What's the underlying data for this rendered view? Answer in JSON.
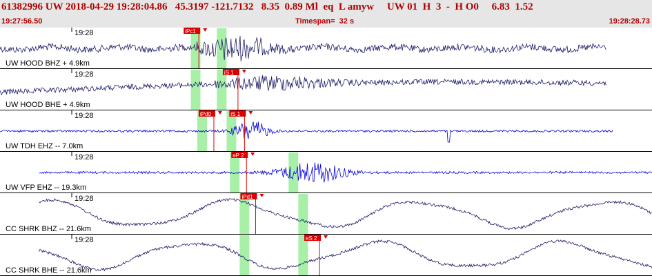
{
  "header": {
    "event_line": "61382996 UW 2018-04-29 19:28:04.86   45.3197 -121.7132   8.35  0.89 Ml  eq  L amyw     UW 01  H  3  -  H O0     6.83  1.52",
    "start_time": "19:27:56.50",
    "timespan": "Timespan=  32 s",
    "end_time": "19:28:28.73"
  },
  "colors": {
    "header_bg": "#e6e6e6",
    "header_text": "#b00000",
    "trace_dark": "#1a1a66",
    "trace_blue": "#0000dd",
    "window_green": "#a8f0a8",
    "pick_red": "#dd0000"
  },
  "panels": [
    {
      "time_label": "19:28",
      "station_label": "UW HOOD BHZ + 4.9km",
      "trace_type": "noise",
      "trace_color": "dark",
      "trace_range": [
        0.0,
        0.93
      ],
      "windows": [
        0.3,
        0.34
      ],
      "picks": [
        {
          "label": "iPc1",
          "pos": 0.305,
          "bar_top": true
        }
      ]
    },
    {
      "time_label": "19:28",
      "station_label": "UW HOOD BHE + 4.9km",
      "trace_type": "drift",
      "trace_color": "dark",
      "trace_range": [
        0.0,
        0.93
      ],
      "windows": [
        0.3,
        0.34
      ],
      "picks": [
        {
          "label": "iS 1",
          "pos": 0.365,
          "bar_top": false
        }
      ]
    },
    {
      "time_label": "19:28",
      "station_label": "UW TDH EHZ -- 7.0km",
      "trace_type": "burst",
      "trace_color": "blue",
      "trace_range": [
        0.0,
        0.94
      ],
      "windows": [
        0.31,
        0.355
      ],
      "picks": [
        {
          "label": "iPd0",
          "pos": 0.328,
          "bar_top": false
        },
        {
          "label": "iS 1",
          "pos": 0.375,
          "bar_top": false
        }
      ]
    },
    {
      "time_label": "19:28",
      "station_label": "UW VFP EHZ -- 19.3km",
      "trace_type": "burst2",
      "trace_color": "blue",
      "trace_range": [
        0.06,
        1.0
      ],
      "windows": [
        0.36,
        0.45
      ],
      "picks": [
        {
          "label": "eP 2",
          "pos": 0.378,
          "bar_top": false
        }
      ]
    },
    {
      "time_label": "19:28",
      "station_label": "CC SHRK BHZ -- 21.6km",
      "trace_type": "long",
      "trace_color": "dark",
      "trace_range": [
        0.06,
        1.0
      ],
      "windows": [
        0.375,
        0.465
      ],
      "picks": [
        {
          "label": "iPd1",
          "pos": 0.392,
          "bar_top": false
        }
      ]
    },
    {
      "time_label": "19:28",
      "station_label": "CC SHRK BHE -- 21.6km",
      "trace_type": "long2",
      "trace_color": "dark",
      "trace_range": [
        0.06,
        1.0
      ],
      "windows": [
        0.375,
        0.465
      ],
      "picks": [
        {
          "label": "eS 2",
          "pos": 0.49,
          "bar_top": false
        }
      ]
    }
  ]
}
